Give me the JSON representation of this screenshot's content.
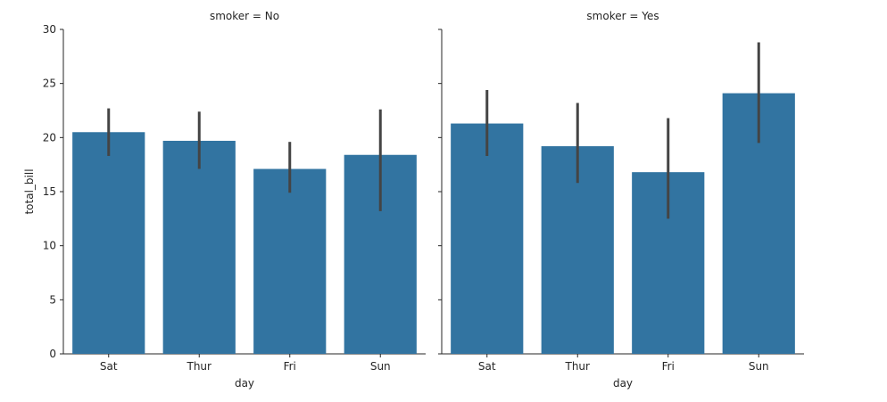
{
  "chart_data": {
    "type": "bar",
    "ylabel": "total_bill",
    "ylim": [
      0,
      30
    ],
    "yticks": [
      0,
      5,
      10,
      15,
      20,
      25,
      30
    ],
    "bar_color": "#3274a1",
    "errorbar_color": "#444444",
    "panels": [
      {
        "title": "smoker = No",
        "xlabel": "day",
        "categories": [
          "Sat",
          "Thur",
          "Fri",
          "Sun"
        ],
        "values": [
          20.5,
          19.7,
          17.1,
          18.4
        ],
        "error_low": [
          18.3,
          17.1,
          14.9,
          13.2
        ],
        "error_high": [
          22.7,
          22.4,
          19.6,
          22.6
        ]
      },
      {
        "title": "smoker = Yes",
        "xlabel": "day",
        "categories": [
          "Sat",
          "Thur",
          "Fri",
          "Sun"
        ],
        "values": [
          21.3,
          19.2,
          16.8,
          24.1
        ],
        "error_low": [
          18.3,
          15.8,
          12.5,
          19.5
        ],
        "error_high": [
          24.4,
          23.2,
          21.8,
          28.8
        ]
      }
    ]
  }
}
